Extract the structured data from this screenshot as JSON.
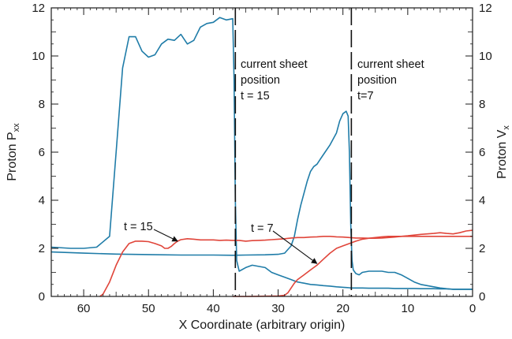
{
  "chart_data": {
    "type": "line",
    "xlabel": "X Coordinate (arbitrary origin)",
    "ylabel_left": "Proton P",
    "ylabel_left_sub": "xx",
    "ylabel_right": "Proton V",
    "ylabel_right_sub": "x",
    "xlim": [
      65,
      0
    ],
    "ylim_left": [
      0,
      12
    ],
    "ylim_right": [
      0,
      12
    ],
    "x_ticks": [
      60,
      50,
      40,
      30,
      20,
      10,
      0
    ],
    "y_ticks_left": [
      0,
      2,
      4,
      6,
      8,
      10,
      12
    ],
    "y_ticks_right": [
      0,
      2,
      4,
      6,
      8,
      10,
      12
    ],
    "grid": false,
    "colors": {
      "pxx": "#1f7ca8",
      "vx": "#e0453a",
      "text": "#1a1a1a"
    },
    "series": [
      {
        "role": "pxx",
        "axis": "left",
        "x": [
          65,
          62,
          60,
          58,
          56,
          55,
          54,
          53,
          52,
          51,
          50,
          49,
          48,
          47,
          46,
          45,
          44,
          43,
          42,
          41,
          40,
          39,
          38,
          37,
          36.8,
          36.6,
          36.4,
          36,
          35,
          34,
          33,
          32,
          31,
          30,
          29,
          28,
          27.5,
          27,
          26,
          25,
          24,
          23,
          22,
          21,
          20,
          19.5,
          19,
          18.8,
          18.6,
          18,
          17,
          16,
          15,
          14,
          13,
          12,
          11,
          10,
          9,
          8,
          7,
          6,
          5,
          4,
          3,
          2,
          1,
          0
        ],
        "y": [
          2.05,
          2.0,
          2.0,
          2.05,
          2.5,
          6.0,
          9.5,
          10.8,
          10.8,
          10.2,
          9.95,
          10.05,
          10.5,
          10.7,
          10.65,
          10.9,
          10.5,
          10.65,
          11.2,
          11.35,
          11.4,
          11.6,
          11.5,
          11.55,
          9.0,
          4.0,
          1.5,
          1.05,
          1.2,
          1.3,
          1.25,
          1.2,
          1.0,
          0.9,
          0.8,
          0.7,
          0.65,
          0.6,
          0.55,
          0.5,
          0.48,
          0.45,
          0.43,
          0.4,
          0.38,
          0.37,
          0.36,
          0.35,
          0.35,
          0.35,
          0.35,
          0.34,
          0.34,
          0.34,
          0.34,
          0.33,
          0.33,
          0.33,
          0.33,
          0.32,
          0.32,
          0.32,
          0.31,
          0.31,
          0.3,
          0.3,
          0.3,
          0.3
        ]
      },
      {
        "role": "pxx",
        "axis": "left",
        "x": [
          65,
          60,
          55,
          50,
          45,
          40,
          37,
          35,
          32,
          30,
          29,
          28,
          27.5,
          27,
          26.5,
          26,
          25.5,
          25,
          24.5,
          24,
          23.5,
          23,
          22,
          21,
          20.5,
          20,
          19.5,
          19.2,
          19,
          18.8,
          18.6,
          18.4,
          18,
          17.5,
          17,
          16,
          15,
          14,
          13,
          12,
          11,
          10,
          9,
          8,
          7,
          6,
          5,
          4,
          3,
          2,
          1,
          0
        ],
        "y": [
          1.85,
          1.8,
          1.76,
          1.74,
          1.72,
          1.72,
          1.71,
          1.72,
          1.73,
          1.75,
          1.8,
          2.1,
          2.5,
          3.2,
          3.8,
          4.3,
          4.8,
          5.2,
          5.4,
          5.5,
          5.7,
          5.9,
          6.3,
          6.8,
          7.3,
          7.6,
          7.7,
          7.5,
          6.0,
          3.0,
          1.5,
          1.1,
          0.95,
          0.9,
          1.0,
          1.05,
          1.05,
          1.05,
          1.0,
          1.0,
          0.9,
          0.75,
          0.6,
          0.5,
          0.45,
          0.4,
          0.35,
          0.32,
          0.3,
          0.3,
          0.3,
          0.3
        ]
      },
      {
        "role": "vx",
        "axis": "right",
        "x": [
          57.5,
          57,
          56,
          55,
          54,
          53,
          52,
          51,
          50,
          49,
          48,
          47.5,
          47,
          46.5,
          46,
          45.5,
          45,
          44,
          43,
          42,
          41,
          40,
          39,
          38,
          37,
          36,
          35,
          34,
          33,
          32,
          31,
          30,
          29,
          28,
          27,
          26,
          25,
          24,
          23,
          22,
          21,
          20,
          19,
          18,
          17,
          16,
          15,
          14,
          13,
          12,
          11,
          10,
          9,
          8,
          7,
          6,
          5,
          4,
          3,
          2,
          1,
          0
        ],
        "y": [
          0.0,
          0.1,
          0.6,
          1.3,
          1.85,
          2.2,
          2.3,
          2.3,
          2.28,
          2.2,
          2.1,
          2.0,
          2.0,
          2.08,
          2.2,
          2.3,
          2.36,
          2.4,
          2.38,
          2.35,
          2.35,
          2.35,
          2.33,
          2.34,
          2.33,
          2.33,
          2.3,
          2.32,
          2.33,
          2.34,
          2.36,
          2.38,
          2.4,
          2.43,
          2.45,
          2.45,
          2.47,
          2.48,
          2.5,
          2.5,
          2.48,
          2.47,
          2.45,
          2.43,
          2.43,
          2.42,
          2.42,
          2.43,
          2.45,
          2.47,
          2.5,
          2.52,
          2.55,
          2.58,
          2.6,
          2.62,
          2.65,
          2.62,
          2.6,
          2.65,
          2.72,
          2.75
        ]
      },
      {
        "role": "vx",
        "axis": "right",
        "x": [
          37,
          35,
          32,
          30,
          29,
          28.5,
          28,
          27.5,
          27,
          26.5,
          26,
          25,
          24,
          23,
          22,
          21,
          20,
          19,
          18,
          17,
          16,
          15,
          14,
          13,
          12,
          11,
          10,
          9,
          8,
          7,
          6,
          5,
          4,
          3,
          2,
          1,
          0
        ],
        "y": [
          0.0,
          0.0,
          0.01,
          0.02,
          0.05,
          0.15,
          0.35,
          0.55,
          0.7,
          0.8,
          0.9,
          1.1,
          1.3,
          1.55,
          1.8,
          2.0,
          2.1,
          2.2,
          2.3,
          2.38,
          2.42,
          2.45,
          2.48,
          2.5,
          2.5,
          2.5,
          2.5,
          2.5,
          2.5,
          2.5,
          2.5,
          2.5,
          2.5,
          2.5,
          2.5,
          2.5,
          2.5
        ]
      }
    ],
    "vlines": [
      {
        "x": 36.6,
        "style": "dashed"
      },
      {
        "x": 18.7,
        "style": "dashed"
      }
    ],
    "annotations": [
      {
        "key": "sheet15",
        "lines": [
          "current sheet",
          "position",
          "t = 15"
        ]
      },
      {
        "key": "sheet7",
        "lines": [
          "current sheet",
          "position",
          "t=7"
        ]
      },
      {
        "key": "t15",
        "text": "t = 15",
        "arrow_to": [
          45.5,
          2.2
        ]
      },
      {
        "key": "t7",
        "text": "t = 7",
        "arrow_to": [
          24,
          1.3
        ]
      }
    ]
  }
}
